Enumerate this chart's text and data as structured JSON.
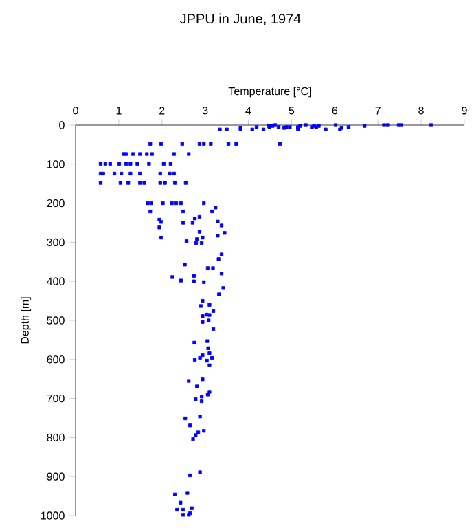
{
  "chart_data": {
    "type": "scatter",
    "title": "JPPU in June, 1974",
    "xlabel": "Temperature [°C]",
    "ylabel": "Depth [m]",
    "xlim": [
      0,
      9
    ],
    "xticks": [
      0,
      1,
      2,
      3,
      4,
      5,
      6,
      7,
      8,
      9
    ],
    "ylim": [
      1000,
      0
    ],
    "yticks": [
      0,
      100,
      200,
      300,
      400,
      500,
      600,
      700,
      800,
      900,
      1000
    ],
    "marker": "square",
    "series": [
      {
        "color": "#0000ff",
        "x": [
          4.62,
          5.33,
          6.02,
          7.14,
          7.22,
          7.48,
          7.54,
          8.23,
          4.48,
          4.56,
          5.2,
          5.52,
          5.63,
          6.69,
          4.19,
          4.49,
          4.7,
          4.88,
          4.96,
          5.15,
          5.47,
          5.57,
          6.32,
          3.82,
          4.83,
          5.15,
          6.16,
          3.34,
          3.5,
          3.82,
          4.09,
          4.35,
          5.15,
          5.79,
          6.12,
          1.73,
          1.98,
          2.47,
          2.87,
          2.97,
          3.13,
          3.54,
          3.72,
          4.73,
          1.11,
          1.17,
          1.33,
          1.49,
          1.65,
          1.77,
          2.28,
          2.62,
          0.58,
          0.69,
          0.8,
          1.01,
          1.17,
          1.27,
          1.43,
          1.7,
          2.04,
          2.2,
          0.58,
          0.64,
          0.9,
          1.06,
          1.27,
          1.49,
          1.96,
          2.18,
          2.28,
          0.58,
          1.04,
          1.22,
          1.49,
          1.59,
          1.96,
          2.07,
          2.3,
          2.55,
          1.67,
          1.75,
          2.02,
          2.23,
          2.33,
          2.44,
          2.97,
          3.24,
          1.73,
          2.49,
          3.16,
          2.76,
          2.87,
          1.94,
          1.98,
          2.49,
          2.71,
          3.29,
          3.38,
          1.94,
          2.87,
          1.98,
          2.81,
          2.94,
          2.57,
          2.79,
          2.92,
          3.29,
          3.45,
          3.38,
          3.31,
          2.53,
          3.06,
          3.18,
          3.38,
          2.24,
          2.44,
          2.74,
          2.74,
          2.97,
          3.42,
          3.32,
          2.94,
          3.1,
          2.9,
          3.19,
          2.94,
          3.03,
          3.1,
          2.94,
          3.08,
          3.19,
          2.75,
          3.05,
          3.07,
          3.1,
          2.94,
          3.16,
          2.88,
          2.76,
          3.04,
          3.1,
          2.94,
          2.62,
          2.81,
          3.1,
          3.06,
          2.78,
          2.92,
          2.92,
          2.54,
          2.88,
          2.65,
          2.97,
          2.84,
          2.78,
          2.72,
          2.88,
          2.65,
          2.3,
          2.59,
          2.43,
          2.35,
          2.49,
          2.69,
          2.65,
          2.49,
          2.62
        ],
        "values": [
          0,
          0,
          0,
          0,
          0,
          0,
          0,
          0,
          2,
          2,
          2,
          2,
          2,
          2,
          5,
          5,
          5,
          5,
          5,
          5,
          5,
          5,
          5,
          7,
          7,
          7,
          7,
          11,
          11,
          11,
          11,
          11,
          11,
          11,
          11,
          48,
          48,
          48,
          48,
          48,
          48,
          48,
          48,
          48,
          74,
          74,
          74,
          74,
          74,
          74,
          74,
          74,
          99,
          99,
          99,
          99,
          99,
          99,
          99,
          99,
          99,
          99,
          124,
          124,
          124,
          124,
          124,
          124,
          124,
          124,
          124,
          148,
          148,
          148,
          148,
          148,
          148,
          148,
          148,
          148,
          200,
          200,
          200,
          200,
          200,
          200,
          200,
          211,
          221,
          221,
          221,
          239,
          235,
          242,
          248,
          250,
          250,
          247,
          257,
          262,
          273,
          288,
          292,
          288,
          297,
          302,
          302,
          283,
          276,
          331,
          343,
          357,
          366,
          366,
          380,
          389,
          398,
          386,
          400,
          402,
          417,
          433,
          450,
          460,
          463,
          476,
          489,
          485,
          486,
          504,
          500,
          522,
          557,
          553,
          571,
          584,
          589,
          596,
          596,
          601,
          603,
          615,
          651,
          655,
          669,
          683,
          690,
          702,
          695,
          707,
          751,
          746,
          769,
          783,
          787,
          794,
          804,
          889,
          897,
          946,
          942,
          967,
          985,
          985,
          981,
          994,
          998,
          998
        ]
      }
    ]
  }
}
